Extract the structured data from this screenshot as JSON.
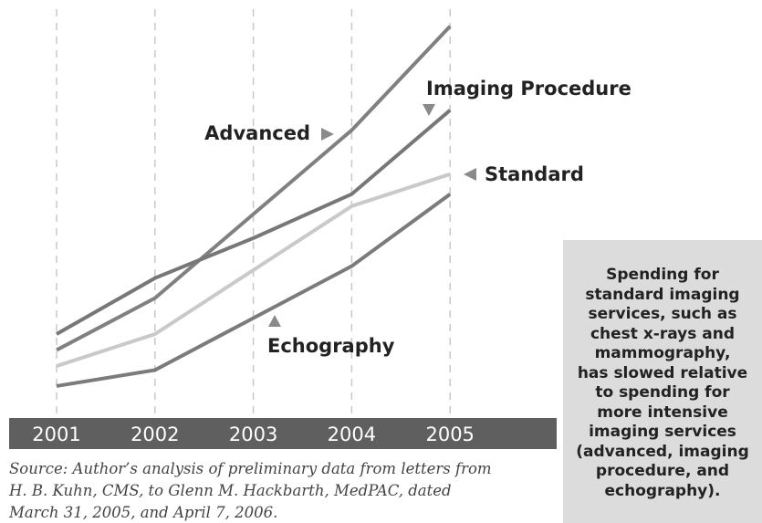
{
  "chart_data": {
    "type": "line",
    "categories": [
      "2001",
      "2002",
      "2003",
      "2004",
      "2005"
    ],
    "series": [
      {
        "name": "Advanced",
        "color": "#808080",
        "values": [
          17,
          30,
          51,
          72,
          98
        ]
      },
      {
        "name": "Imaging Procedure",
        "color": "#777777",
        "values": [
          21,
          35,
          45,
          56,
          77
        ]
      },
      {
        "name": "Standard",
        "color": "#c9c9c9",
        "values": [
          13,
          21,
          37,
          53,
          61
        ]
      },
      {
        "name": "Echography",
        "color": "#7b7b7b",
        "values": [
          8,
          12,
          25,
          38,
          56
        ]
      }
    ],
    "ylim": [
      0,
      100
    ],
    "grid": true,
    "source": [
      "Source: Author’s analysis of preliminary data from letters from",
      "H. B. Kuhn, CMS, to Glenn M. Hackbarth, MedPAC, dated",
      "March 31, 2005, and April 7, 2006."
    ],
    "side_note": [
      "Spending for",
      "standard imaging",
      "services, such as",
      "chest x-rays and",
      "mammography,",
      "has slowed relative",
      "to spending for",
      "more intensive",
      "imaging services",
      "(advanced, imaging",
      "procedure, and",
      "echography)."
    ]
  }
}
